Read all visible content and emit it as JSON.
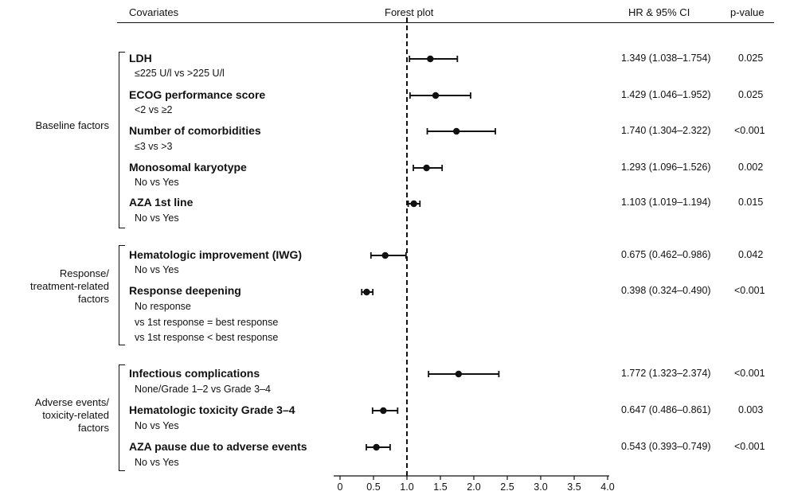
{
  "headers": {
    "covariates": "Covariates",
    "forest": "Forest plot",
    "hr": "HR & 95% CI",
    "p": "p-value"
  },
  "groups": [
    {
      "label": "Baseline factors"
    },
    {
      "label": "Response/\ntreatment-related\nfactors"
    },
    {
      "label": "Adverse events/\ntoxicity-related\nfactors"
    }
  ],
  "covariates": [
    {
      "title": "LDH",
      "sub": [
        "≤225 U/l vs >225 U/l"
      ],
      "hr_text": "1.349 (1.038–1.754)",
      "p_text": "0.025"
    },
    {
      "title": "ECOG performance score",
      "sub": [
        "<2 vs  ≥2"
      ],
      "hr_text": "1.429 (1.046–1.952)",
      "p_text": "0.025"
    },
    {
      "title": "Number of comorbidities",
      "sub": [
        "≤3 vs >3"
      ],
      "hr_text": "1.740 (1.304–2.322)",
      "p_text": "<0.001"
    },
    {
      "title": "Monosomal karyotype",
      "sub": [
        "No vs Yes"
      ],
      "hr_text": "1.293 (1.096–1.526)",
      "p_text": "0.002"
    },
    {
      "title": "AZA 1st line",
      "sub": [
        "No vs Yes"
      ],
      "hr_text": "1.103 (1.019–1.194)",
      "p_text": "0.015"
    },
    {
      "title": "Hematologic improvement (IWG)",
      "sub": [
        "No vs Yes"
      ],
      "hr_text": "0.675 (0.462–0.986)",
      "p_text": "0.042"
    },
    {
      "title": "Response deepening",
      "sub": [
        "No response",
        "vs 1st response = best response",
        "vs 1st response < best response"
      ],
      "hr_text": "0.398 (0.324–0.490)",
      "p_text": "<0.001"
    },
    {
      "title": "Infectious complications",
      "sub": [
        "None/Grade 1–2 vs Grade 3–4"
      ],
      "hr_text": "1.772 (1.323–2.374)",
      "p_text": "<0.001"
    },
    {
      "title": "Hematologic toxicity Grade 3–4",
      "sub": [
        "No vs Yes"
      ],
      "hr_text": "0.647 (0.486–0.861)",
      "p_text": "0.003"
    },
    {
      "title": "AZA pause due to adverse events",
      "sub": [
        "No vs Yes"
      ],
      "hr_text": "0.543 (0.393–0.749)",
      "p_text": "<0.001"
    }
  ],
  "chart_data": {
    "type": "forest",
    "title": "Forest plot",
    "xlim": [
      0,
      4.0
    ],
    "xticks": [
      "0",
      "0.5",
      "1.0",
      "1.5",
      "2.0",
      "2.5",
      "3.0",
      "3.5",
      "4.0"
    ],
    "reference_line": 1.0,
    "categories": [
      "LDH",
      "ECOG performance score",
      "Number of comorbidities",
      "Monosomal karyotype",
      "AZA 1st line",
      "Hematologic improvement (IWG)",
      "Response deepening",
      "Infectious complications",
      "Hematologic toxicity Grade 3–4",
      "AZA pause due to adverse events"
    ],
    "hr": [
      1.349,
      1.429,
      1.74,
      1.293,
      1.103,
      0.675,
      0.398,
      1.772,
      0.647,
      0.543
    ],
    "lower": [
      1.038,
      1.046,
      1.304,
      1.096,
      1.019,
      0.462,
      0.324,
      1.323,
      0.486,
      0.393
    ],
    "upper": [
      1.754,
      1.952,
      2.322,
      1.526,
      1.194,
      0.986,
      0.49,
      2.374,
      0.861,
      0.749
    ]
  }
}
